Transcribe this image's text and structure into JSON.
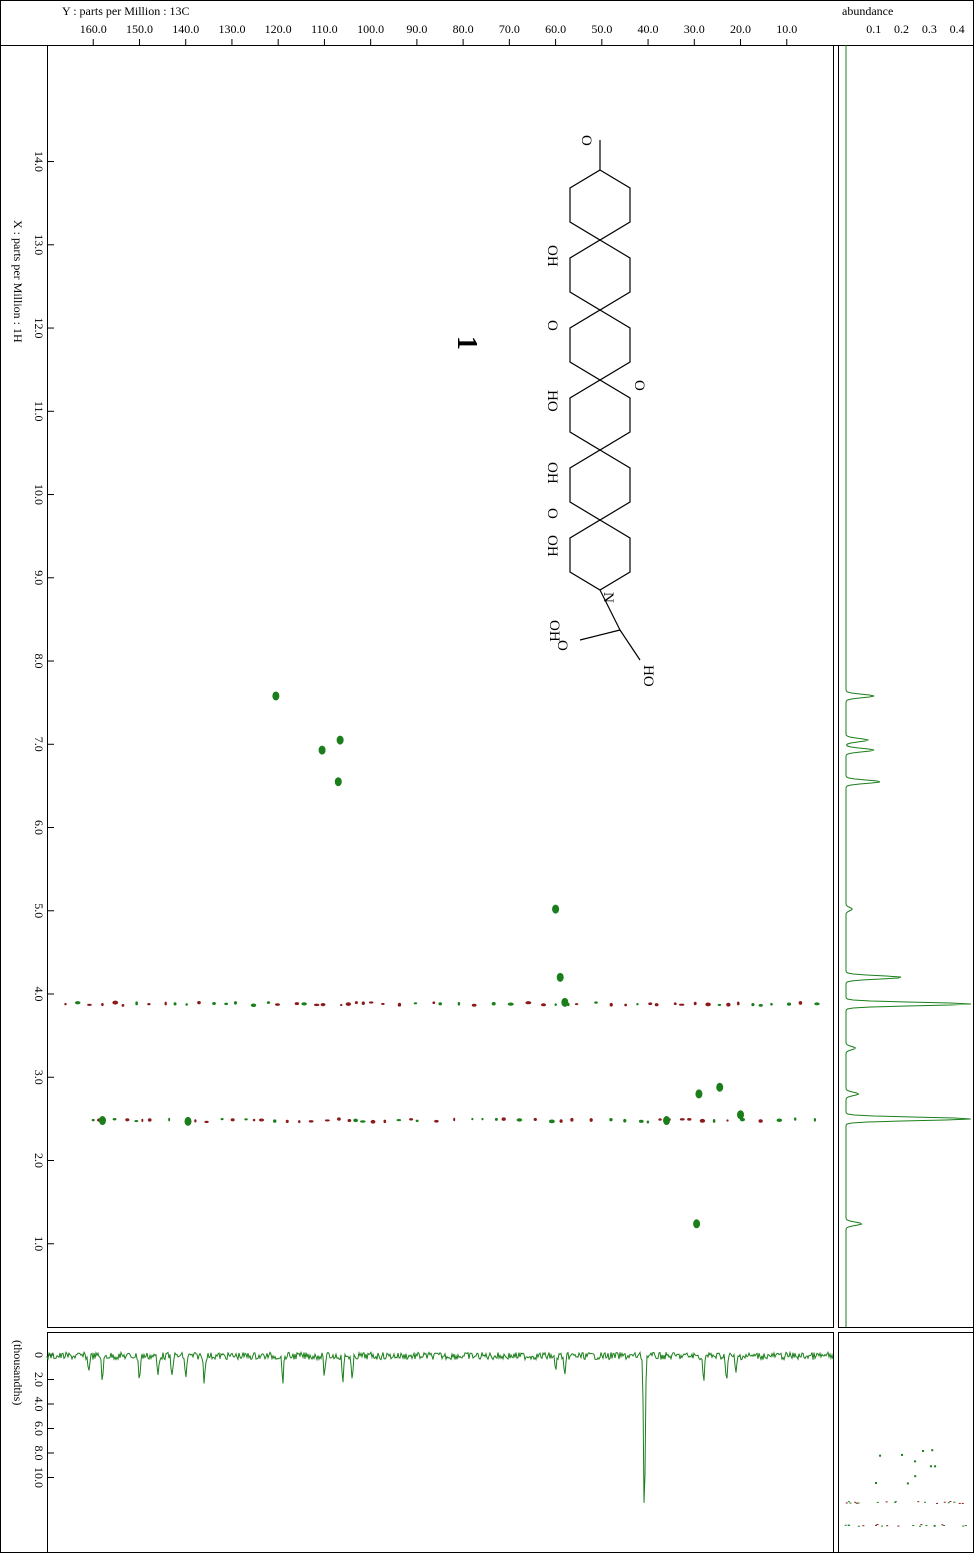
{
  "chart_data": {
    "type": "scatter",
    "subtype": "2D NMR HSQC contour plot with 1D projections",
    "x_axis": {
      "label": "Y : parts per Million : 13C",
      "range": [
        170,
        0
      ],
      "ticks": [
        160.0,
        150.0,
        140.0,
        130.0,
        120.0,
        110.0,
        100.0,
        90.0,
        80.0,
        70.0,
        60.0,
        50.0,
        40.0,
        30.0,
        20.0,
        10.0
      ],
      "tick_labels": [
        "160.0",
        "150.0",
        "140.0",
        "130.0",
        "120.0",
        "110.0",
        "100.0",
        "90.0",
        "80.0",
        "70.0",
        "60.0",
        "50.0",
        "40.0",
        "30.0",
        "20.0",
        "10.0"
      ],
      "reversed": true
    },
    "y_axis": {
      "label": "X : parts per Million : 1H",
      "range": [
        15.4,
        0
      ],
      "ticks": [
        14.0,
        13.0,
        12.0,
        11.0,
        10.0,
        9.0,
        8.0,
        7.0,
        6.0,
        5.0,
        4.0,
        3.0,
        2.0,
        1.0
      ],
      "tick_labels": [
        "14.0",
        "13.0",
        "12.0",
        "11.0",
        "10.0",
        "9.0",
        "8.0",
        "7.0",
        "6.0",
        "5.0",
        "4.0",
        "3.0",
        "2.0",
        "1.0"
      ],
      "reversed": true
    },
    "right_panel": {
      "label": "abundance",
      "tick_labels": [
        "0.1",
        "0.2",
        "0.3",
        "0.4"
      ],
      "ticks": [
        0.1,
        0.2,
        0.3,
        0.4
      ],
      "peaks": [
        {
          "y": 7.58,
          "amp": 0.09
        },
        {
          "y": 7.05,
          "amp": 0.07
        },
        {
          "y": 6.93,
          "amp": 0.09
        },
        {
          "y": 6.55,
          "amp": 0.11
        },
        {
          "y": 5.02,
          "amp": 0.02
        },
        {
          "y": 4.2,
          "amp": 0.18
        },
        {
          "y": 3.88,
          "amp": 0.4
        },
        {
          "y": 3.35,
          "amp": 0.03
        },
        {
          "y": 2.8,
          "amp": 0.04
        },
        {
          "y": 2.5,
          "amp": 0.4
        },
        {
          "y": 1.24,
          "amp": 0.05
        }
      ]
    },
    "bottom_panel": {
      "label": "(thousandths)",
      "tick_labels": [
        "0",
        "2.0",
        "4.0",
        "6.0",
        "8.0",
        "10.0"
      ],
      "ticks": [
        0,
        2.0,
        4.0,
        6.0,
        8.0,
        10.0
      ],
      "dips": [
        {
          "x": 161,
          "depth": 1.2
        },
        {
          "x": 158,
          "depth": 2.0
        },
        {
          "x": 150,
          "depth": 1.9
        },
        {
          "x": 146,
          "depth": 1.6
        },
        {
          "x": 143,
          "depth": 1.7
        },
        {
          "x": 140,
          "depth": 1.8
        },
        {
          "x": 136,
          "depth": 2.0
        },
        {
          "x": 119,
          "depth": 2.0
        },
        {
          "x": 110,
          "depth": 1.5
        },
        {
          "x": 106,
          "depth": 2.0
        },
        {
          "x": 104,
          "depth": 2.1
        },
        {
          "x": 60,
          "depth": 1.2
        },
        {
          "x": 58,
          "depth": 1.8
        },
        {
          "x": 40.8,
          "depth": 13.0
        },
        {
          "x": 28,
          "depth": 2.0
        },
        {
          "x": 23,
          "depth": 2.0
        },
        {
          "x": 21,
          "depth": 1.5
        }
      ]
    },
    "cross_peaks": [
      {
        "x": 120.5,
        "y": 7.58,
        "sign": "positive"
      },
      {
        "x": 106.6,
        "y": 7.05,
        "sign": "positive"
      },
      {
        "x": 110.5,
        "y": 6.93,
        "sign": "positive"
      },
      {
        "x": 107.0,
        "y": 6.55,
        "sign": "positive"
      },
      {
        "x": 60.0,
        "y": 5.02,
        "sign": "positive"
      },
      {
        "x": 59.0,
        "y": 4.2,
        "sign": "positive"
      },
      {
        "x": 58.0,
        "y": 3.9,
        "sign": "positive"
      },
      {
        "x": 29.0,
        "y": 2.8,
        "sign": "positive"
      },
      {
        "x": 24.5,
        "y": 2.88,
        "sign": "positive"
      },
      {
        "x": 20.0,
        "y": 2.55,
        "sign": "positive"
      },
      {
        "x": 36.0,
        "y": 2.48,
        "sign": "positive"
      },
      {
        "x": 29.5,
        "y": 1.24,
        "sign": "positive"
      },
      {
        "x": 139.5,
        "y": 2.47,
        "sign": "positive"
      },
      {
        "x": 158.0,
        "y": 2.48,
        "sign": "positive"
      }
    ],
    "artifact_rows": [
      {
        "y": 3.88,
        "x_start": 166,
        "x_end": 2
      },
      {
        "y": 2.48,
        "x_start": 160,
        "x_end": 2
      }
    ],
    "structure": {
      "compound_label": "1",
      "atom_labels": [
        "HO",
        "N",
        "O",
        "OH",
        "OH",
        "HO",
        "OH",
        "O",
        "O",
        "OH",
        "O",
        "O"
      ]
    },
    "colors": {
      "positive": "#1a7f1a",
      "negative": "#8b1a1a",
      "trace": "#1a7f1a",
      "frame": "#000000"
    }
  }
}
